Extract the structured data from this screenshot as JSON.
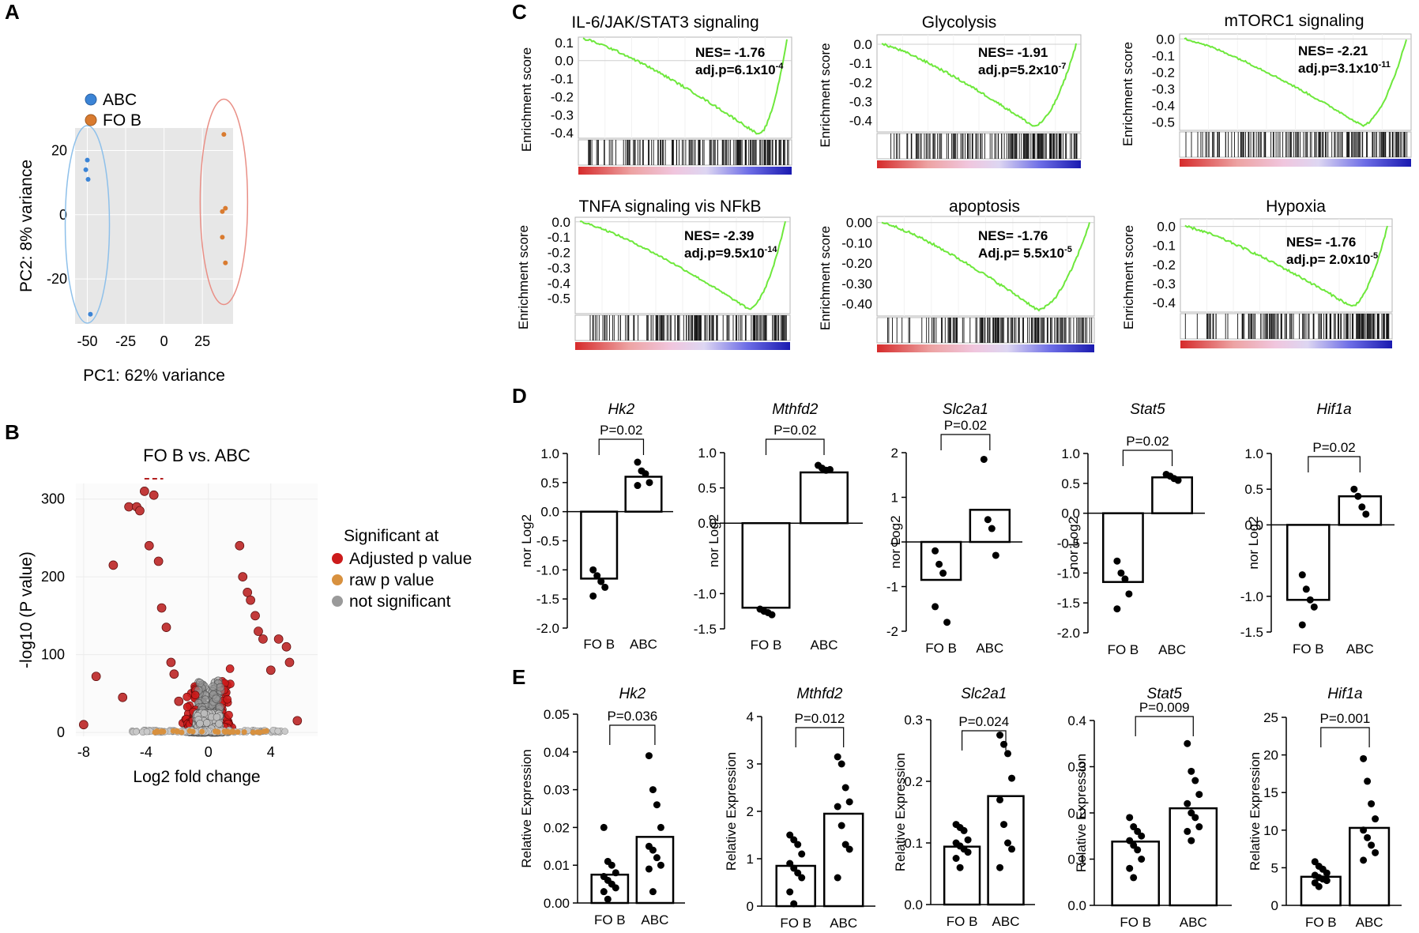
{
  "colors": {
    "abc": "#3b84d6",
    "fob": "#d97b30",
    "ellipse_abc": "#8ec0ea",
    "ellipse_fob": "#e98f86",
    "pca_bg": "#e7e7e7",
    "sig_adj": "#cc1b1b",
    "sig_raw": "#d8913f",
    "not_sig": "#9a9a9a",
    "gsea_curve": "#6ee83c"
  },
  "panel_labels": [
    "A",
    "B",
    "C",
    "D",
    "E"
  ],
  "chart_data": [
    {
      "id": "pca",
      "type": "scatter",
      "panel": "A",
      "xlabel": "PC1: 62% variance",
      "ylabel": "PC2: 8% variance",
      "xlim": [
        -58,
        45
      ],
      "ylim": [
        -34,
        27
      ],
      "xticks": [
        -50,
        -25,
        0,
        25
      ],
      "yticks": [
        20,
        0,
        -20
      ],
      "legend": [
        "ABC",
        "FO B"
      ],
      "series": [
        {
          "name": "ABC",
          "color": "#3b84d6",
          "x": [
            -50,
            -51,
            -49.5,
            -48
          ],
          "y": [
            17,
            14,
            11,
            -31
          ]
        },
        {
          "name": "FO B",
          "color": "#d97b30",
          "x": [
            39,
            38,
            40,
            38,
            40
          ],
          "y": [
            25,
            1,
            2,
            -7,
            -15
          ]
        }
      ]
    },
    {
      "id": "volcano",
      "type": "scatter",
      "panel": "B",
      "title": "FO B vs. ABC",
      "xlabel": "Log2 fold change",
      "ylabel": "-log10 (P value)",
      "xlim": [
        -8.5,
        7
      ],
      "ylim": [
        -5,
        320
      ],
      "xticks": [
        -8,
        -4,
        0,
        4
      ],
      "yticks": [
        0,
        100,
        200,
        300
      ],
      "legend_title": "Significant at",
      "legend": [
        "Adjusted p value",
        "raw p value",
        "not significant"
      ],
      "highlight_points": {
        "x": [
          -8,
          -7.2,
          -6.1,
          -5.5,
          -5.1,
          -4.6,
          -4.4,
          -4.1,
          -3.8,
          -3.5,
          -3.2,
          -3.0,
          -2.7,
          -2.4,
          -2.2,
          -1.9,
          2.0,
          2.2,
          2.5,
          2.7,
          3.0,
          3.2,
          3.5,
          4.0,
          4.5,
          5.0,
          5.2,
          5.7
        ],
        "y": [
          10,
          72,
          215,
          45,
          290,
          290,
          285,
          310,
          240,
          305,
          220,
          160,
          135,
          90,
          75,
          40,
          240,
          200,
          180,
          170,
          150,
          130,
          120,
          80,
          120,
          110,
          90,
          15
        ]
      }
    },
    {
      "id": "gsea",
      "type": "line",
      "panel": "C",
      "ylabel": "Enrichment score",
      "plots": [
        {
          "title": "IL-6/JAK/STAT3 signaling",
          "nes": "NES= -1.76",
          "adjp": "adj.p=6.1x10",
          "exp": "-4",
          "yticks": [
            "0.1",
            "0.0",
            "-0.1",
            "-0.2",
            "-0.3",
            "-0.4"
          ],
          "ymin": -0.43,
          "ymax": 0.13,
          "min": -0.41,
          "minpos": 0.86,
          "start": 0.12
        },
        {
          "title": "Glycolysis",
          "nes": "NES= -1.91",
          "adjp": "adj.p=5.2x10",
          "exp": "-7",
          "yticks": [
            "0.0",
            "-0.1",
            "-0.2",
            "-0.3",
            "-0.4"
          ],
          "ymin": -0.46,
          "ymax": 0.05,
          "min": -0.43,
          "minpos": 0.78,
          "start": 0.0
        },
        {
          "title": "mTORC1 signaling",
          "nes": "NES= -2.21",
          "adjp": "adj.p=3.1x10",
          "exp": "-11",
          "yticks": [
            "0.0",
            "-0.1",
            "-0.2",
            "-0.3",
            "-0.4",
            "-0.5"
          ],
          "ymin": -0.55,
          "ymax": 0.03,
          "min": -0.52,
          "minpos": 0.8,
          "start": 0.0
        },
        {
          "title": "TNFA signaling vis NFkB",
          "nes": "NES= -2.39",
          "adjp": "adj.p=9.5x10",
          "exp": "-14",
          "yticks": [
            "0.0",
            "-0.1",
            "-0.2",
            "-0.3",
            "-0.4",
            "-0.5"
          ],
          "ymin": -0.6,
          "ymax": 0.03,
          "min": -0.57,
          "minpos": 0.82,
          "start": 0.0
        },
        {
          "title": "apoptosis",
          "nes": "NES= -1.76",
          "adjp": "Adj.p= 5.5x10",
          "exp": "-5",
          "yticks": [
            "0.00",
            "-0.10",
            "-0.20",
            "-0.30",
            "-0.40"
          ],
          "ymin": -0.46,
          "ymax": 0.03,
          "min": -0.43,
          "minpos": 0.75,
          "start": 0.0
        },
        {
          "title": "Hypoxia",
          "nes": "NES= -1.76",
          "adjp": "adj.p= 2.0x10",
          "exp": "-5",
          "yticks": [
            "0.0",
            "-0.1",
            "-0.2",
            "-0.3",
            "-0.4"
          ],
          "ymin": -0.45,
          "ymax": 0.04,
          "min": -0.42,
          "minpos": 0.82,
          "start": 0.0
        }
      ]
    },
    {
      "id": "rnaseq_bars",
      "type": "bar",
      "panel": "D",
      "ylabel": "nor Log2",
      "categories": [
        "FO B",
        "ABC"
      ],
      "plots": [
        {
          "gene": "Hk2",
          "p": "P=0.02",
          "yticks": [
            "1.0",
            "0.5",
            "0.0",
            "-0.5",
            "-1.0",
            "-1.5",
            "-2.0"
          ],
          "ymin": -2.0,
          "ymax": 1.0,
          "means": [
            -1.15,
            0.6
          ],
          "fob": [
            -1.0,
            -1.1,
            -1.2,
            -1.3,
            -1.45
          ],
          "abc": [
            0.85,
            0.7,
            0.65,
            0.5,
            0.45
          ]
        },
        {
          "gene": "Mthfd2",
          "p": "P=0.02",
          "yticks": [
            "1.0",
            "0.5",
            "0.0",
            "-1.0",
            "-1.5"
          ],
          "ymin": -1.5,
          "ymax": 1.0,
          "means": [
            -1.2,
            0.72
          ],
          "fob": [
            -1.22,
            -1.25,
            -1.27,
            -1.3
          ],
          "abc": [
            0.82,
            0.78,
            0.75,
            0.76
          ]
        },
        {
          "gene": "Slc2a1",
          "p": "P=0.02",
          "yticks": [
            "2",
            "1",
            "0",
            "-1",
            "-2"
          ],
          "ymin": -2.0,
          "ymax": 2.0,
          "means": [
            -0.85,
            0.72
          ],
          "fob": [
            -0.2,
            -0.5,
            -0.7,
            -1.8,
            -1.45
          ],
          "abc": [
            1.85,
            0.5,
            0.3,
            -0.3
          ]
        },
        {
          "gene": "Stat5",
          "p": "P=0.02",
          "yticks": [
            "1.0",
            "0.5",
            "0.0",
            "-0.5",
            "-1.0",
            "-1.5",
            "-2.0"
          ],
          "ymin": -2.0,
          "ymax": 1.0,
          "means": [
            -1.15,
            0.6
          ],
          "fob": [
            -0.8,
            -1.0,
            -1.1,
            -1.35,
            -1.6
          ],
          "abc": [
            0.65,
            0.62,
            0.58,
            0.55
          ]
        },
        {
          "gene": "Hif1a",
          "p": "P=0.02",
          "yticks": [
            "1.0",
            "0.5",
            "0.0",
            "-1.0",
            "-1.5"
          ],
          "ymin": -1.5,
          "ymax": 1.0,
          "means": [
            -1.05,
            0.4
          ],
          "fob": [
            -0.7,
            -0.9,
            -1.05,
            -1.15,
            -1.4
          ],
          "abc": [
            0.5,
            0.4,
            0.25,
            0.15
          ]
        }
      ]
    },
    {
      "id": "qpcr_bars",
      "type": "bar",
      "panel": "E",
      "ylabel": "Relative Expression",
      "categories": [
        "FO B",
        "ABC"
      ],
      "plots": [
        {
          "gene": "Hk2",
          "p": "P=0.036",
          "yticks": [
            "0.05",
            "0.04",
            "0.03",
            "0.02",
            "0.01",
            "0.00"
          ],
          "ymin": 0,
          "ymax": 0.05,
          "means": [
            0.0075,
            0.0175
          ],
          "fob": [
            0.02,
            0.011,
            0.01,
            0.008,
            0.007,
            0.006,
            0.005,
            0.004,
            0.003,
            0.001
          ],
          "abc": [
            0.039,
            0.03,
            0.026,
            0.02,
            0.015,
            0.014,
            0.012,
            0.01,
            0.009,
            0.003
          ]
        },
        {
          "gene": "Mthfd2",
          "p": "P=0.012",
          "yticks": [
            "4",
            "3",
            "2",
            "1",
            "0"
          ],
          "ymin": 0,
          "ymax": 4,
          "means": [
            0.85,
            1.95
          ],
          "fob": [
            1.5,
            1.4,
            1.3,
            1.1,
            0.9,
            0.8,
            0.7,
            0.6,
            0.3,
            0.05
          ],
          "abc": [
            3.15,
            3.0,
            2.5,
            2.2,
            2.1,
            1.7,
            1.3,
            1.2,
            0.6
          ]
        },
        {
          "gene": "Slc2a1",
          "p": "P=0.024",
          "yticks": [
            "0.3",
            "0.2",
            "0.1",
            "0.0"
          ],
          "ymin": 0,
          "ymax": 0.3,
          "means": [
            0.094,
            0.176
          ],
          "fob": [
            0.13,
            0.125,
            0.12,
            0.105,
            0.1,
            0.095,
            0.09,
            0.085,
            0.075,
            0.06
          ],
          "abc": [
            0.275,
            0.26,
            0.245,
            0.205,
            0.17,
            0.13,
            0.1,
            0.09,
            0.06
          ]
        },
        {
          "gene": "Stat5",
          "p": "P=0.009",
          "yticks": [
            "0.4",
            "0.3",
            "0.2",
            "0.1",
            "0.0"
          ],
          "ymin": 0,
          "ymax": 0.4,
          "means": [
            0.138,
            0.21
          ],
          "fob": [
            0.19,
            0.17,
            0.16,
            0.15,
            0.14,
            0.13,
            0.12,
            0.1,
            0.08,
            0.06
          ],
          "abc": [
            0.35,
            0.29,
            0.27,
            0.24,
            0.22,
            0.2,
            0.19,
            0.17,
            0.16,
            0.14
          ]
        },
        {
          "gene": "Hif1a",
          "p": "P=0.001",
          "yticks": [
            "25",
            "20",
            "15",
            "10",
            "5",
            "0"
          ],
          "ymin": 0,
          "ymax": 25,
          "means": [
            3.8,
            10.3
          ],
          "fob": [
            5.8,
            5.2,
            4.8,
            4.3,
            4.0,
            3.7,
            3.5,
            3.3,
            3.0,
            2.5
          ],
          "abc": [
            19.5,
            16.5,
            13.5,
            11.5,
            10.0,
            9.0,
            8.0,
            7.0,
            6.0
          ]
        }
      ]
    }
  ]
}
